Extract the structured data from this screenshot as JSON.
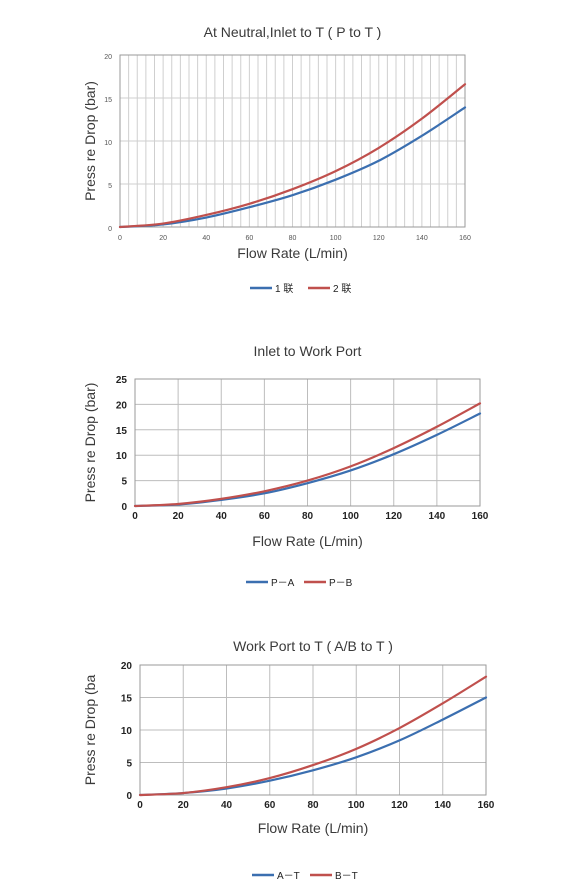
{
  "chart_data": [
    {
      "type": "line",
      "title": "At Neutral,Inlet to T ( P to T )",
      "xlabel": "Flow Rate (L/min)",
      "ylabel": "Press   re Drop (bar)",
      "xlim": [
        0,
        160
      ],
      "ylim": [
        0,
        20
      ],
      "xticks": [
        "0",
        "20",
        "40",
        "60",
        "80",
        "100",
        "120",
        "140",
        "160"
      ],
      "yticks": [
        "0",
        "5",
        "10",
        "15",
        "20"
      ],
      "grid": true,
      "legend_position": "bottom",
      "series": [
        {
          "name": "1 联",
          "color": "#3b6fb0",
          "x": [
            0,
            20,
            40,
            60,
            80,
            100,
            120,
            140,
            160
          ],
          "y": [
            0,
            0.3,
            1.1,
            2.3,
            3.7,
            5.5,
            7.7,
            10.6,
            13.9
          ]
        },
        {
          "name": "2 联",
          "color": "#c0504d",
          "x": [
            0,
            20,
            40,
            60,
            80,
            100,
            120,
            140,
            160
          ],
          "y": [
            0,
            0.4,
            1.4,
            2.7,
            4.4,
            6.5,
            9.2,
            12.6,
            16.6
          ]
        }
      ]
    },
    {
      "type": "line",
      "title": "Inlet to Work Port",
      "xlabel": "Flow Rate (L/min)",
      "ylabel": "Press   re Drop (bar)",
      "xlim": [
        0,
        160
      ],
      "ylim": [
        0,
        25
      ],
      "xticks": [
        "0",
        "20",
        "40",
        "60",
        "80",
        "100",
        "120",
        "140",
        "160"
      ],
      "yticks": [
        "0",
        "5",
        "10",
        "15",
        "20",
        "25"
      ],
      "grid": true,
      "legend_position": "bottom",
      "series": [
        {
          "name": "P－A",
          "color": "#3b6fb0",
          "x": [
            0,
            20,
            40,
            60,
            80,
            100,
            120,
            140,
            160
          ],
          "y": [
            0,
            0.3,
            1.2,
            2.5,
            4.5,
            7.0,
            10.2,
            14.0,
            18.2
          ]
        },
        {
          "name": "P－B",
          "color": "#c0504d",
          "x": [
            0,
            20,
            40,
            60,
            80,
            100,
            120,
            140,
            160
          ],
          "y": [
            0,
            0.4,
            1.4,
            2.9,
            5.0,
            7.8,
            11.4,
            15.6,
            20.2
          ]
        }
      ]
    },
    {
      "type": "line",
      "title": "Work Port to T ( A/B to T )",
      "xlabel": "Flow Rate (L/min)",
      "ylabel": "Press   re Drop (ba",
      "xlim": [
        0,
        160
      ],
      "ylim": [
        0,
        20
      ],
      "xticks": [
        "0",
        "20",
        "40",
        "60",
        "80",
        "100",
        "120",
        "140",
        "160"
      ],
      "yticks": [
        "0",
        "5",
        "10",
        "15",
        "20"
      ],
      "grid": true,
      "legend_position": "bottom",
      "series": [
        {
          "name": "A－T",
          "color": "#3b6fb0",
          "x": [
            0,
            20,
            40,
            60,
            80,
            100,
            120,
            140,
            160
          ],
          "y": [
            0,
            0.3,
            1.0,
            2.2,
            3.8,
            5.8,
            8.4,
            11.6,
            15.0
          ]
        },
        {
          "name": "B－T",
          "color": "#c0504d",
          "x": [
            0,
            20,
            40,
            60,
            80,
            100,
            120,
            140,
            160
          ],
          "y": [
            0,
            0.3,
            1.2,
            2.6,
            4.6,
            7.1,
            10.3,
            14.1,
            18.2
          ]
        }
      ]
    }
  ]
}
